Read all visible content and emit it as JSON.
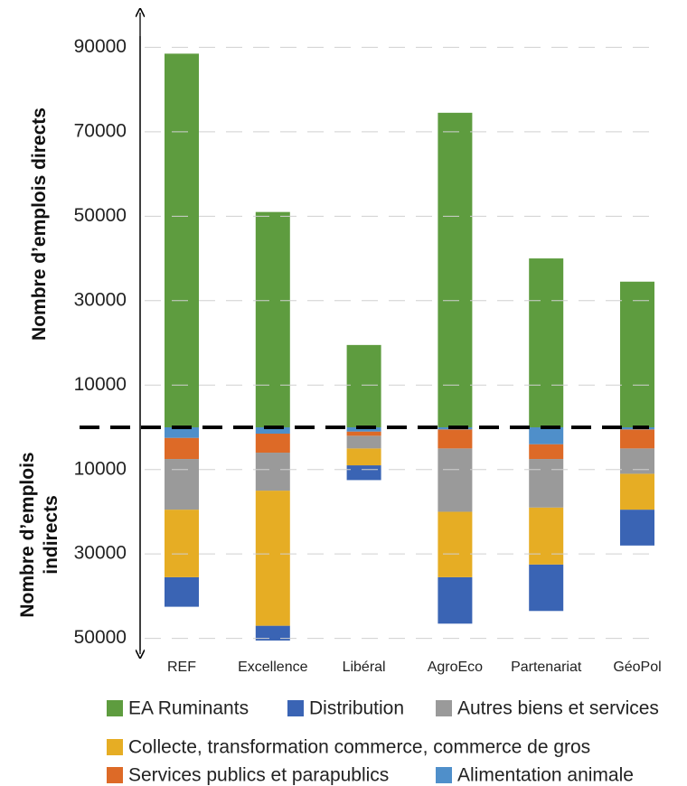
{
  "chart_data": {
    "type": "diverging-stacked-bar",
    "y_label_up": "Nombre d’emplois directs",
    "y_label_down": "Nombre d’emplois indirects",
    "categories": [
      "REF",
      "Excellence",
      "Libéral",
      "AgroEco",
      "Partenariat",
      "GéoPol"
    ],
    "series": [
      {
        "name": "EA Ruminants",
        "color": "#5e9c3f",
        "values": [
          88500,
          51000,
          19500,
          74500,
          40000,
          34500
        ]
      },
      {
        "name": "Distribution",
        "color": "#3a64b4",
        "values": [
          -7000,
          -3500,
          -3500,
          -11000,
          -11000,
          -8500
        ]
      },
      {
        "name": "Autres biens et services",
        "color": "#9a9a9a",
        "values": [
          -12000,
          -9000,
          -3000,
          -15000,
          -11500,
          -6000
        ]
      },
      {
        "name": "Collecte, transformation commerce, commerce de gros",
        "color": "#e6ad24",
        "values": [
          -16000,
          -32000,
          -4000,
          -15500,
          -13500,
          -8500
        ]
      },
      {
        "name": "Services publics et parapublics",
        "color": "#dd6a27",
        "values": [
          -5000,
          -4500,
          -1000,
          -4500,
          -3500,
          -4500
        ]
      },
      {
        "name": "Alimentation animale",
        "color": "#4f8fca",
        "values": [
          -2500,
          -1500,
          -1000,
          -500,
          -4000,
          -500
        ]
      }
    ],
    "ylim": [
      -52000,
      98000
    ],
    "yticks": [
      90000,
      70000,
      50000,
      30000,
      10000,
      {
        "value": -10000,
        "label": "10000"
      },
      {
        "value": -30000,
        "label": "30000"
      },
      {
        "value": -50000,
        "label": "50000"
      }
    ],
    "grid": true
  }
}
